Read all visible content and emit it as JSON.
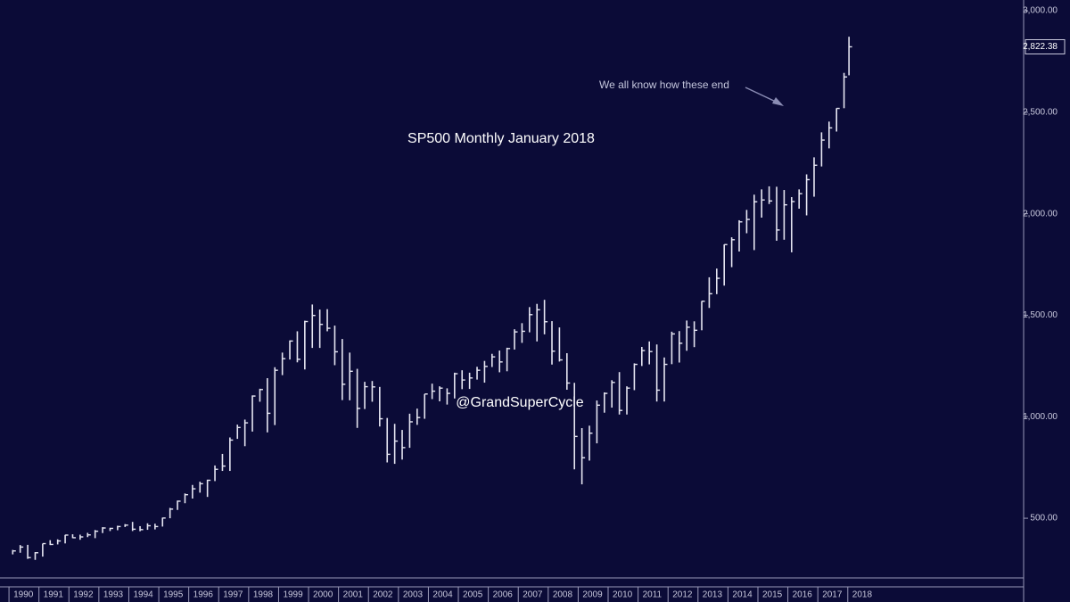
{
  "chart_data": {
    "type": "ohlc",
    "title": "SP500  Monthly  January  2018",
    "annotation": "We all know how these end",
    "watermark": "@GrandSuperCycle",
    "color": "#e6e6f2",
    "background": "#0b0b37",
    "last_price": {
      "value": 2822.38,
      "label": "2,822.38"
    },
    "xlim": [
      1989.7,
      2023.87
    ],
    "ylim": [
      206,
      3053
    ],
    "xticks": [
      1990,
      1991,
      1992,
      1993,
      1994,
      1995,
      1996,
      1997,
      1998,
      1999,
      2000,
      2001,
      2002,
      2003,
      2004,
      2005,
      2006,
      2007,
      2008,
      2009,
      2010,
      2011,
      2012,
      2013,
      2014,
      2015,
      2016,
      2017,
      2018
    ],
    "yticks": [
      {
        "value": 500,
        "label": "500.00"
      },
      {
        "value": 1000,
        "label": "1,000.00"
      },
      {
        "value": 1500,
        "label": "1,500.00"
      },
      {
        "value": 2000,
        "label": "2,000.00"
      },
      {
        "value": 2500,
        "label": "2,500.00"
      },
      {
        "value": 3000,
        "label": "3,000.00"
      }
    ],
    "x": [
      1990.125,
      1990.375,
      1990.625,
      1990.875,
      1991.125,
      1991.375,
      1991.625,
      1991.875,
      1992.125,
      1992.375,
      1992.625,
      1992.875,
      1993.125,
      1993.375,
      1993.625,
      1993.875,
      1994.125,
      1994.375,
      1994.625,
      1994.875,
      1995.125,
      1995.375,
      1995.625,
      1995.875,
      1996.125,
      1996.375,
      1996.625,
      1996.875,
      1997.125,
      1997.375,
      1997.625,
      1997.875,
      1998.125,
      1998.375,
      1998.625,
      1998.875,
      1999.125,
      1999.375,
      1999.625,
      1999.875,
      2000.125,
      2000.375,
      2000.625,
      2000.875,
      2001.125,
      2001.375,
      2001.625,
      2001.875,
      2002.125,
      2002.375,
      2002.625,
      2002.875,
      2003.125,
      2003.375,
      2003.625,
      2003.875,
      2004.125,
      2004.375,
      2004.625,
      2004.875,
      2005.125,
      2005.375,
      2005.625,
      2005.875,
      2006.125,
      2006.375,
      2006.625,
      2006.875,
      2007.125,
      2007.375,
      2007.625,
      2007.875,
      2008.125,
      2008.375,
      2008.625,
      2008.875,
      2009.125,
      2009.375,
      2009.625,
      2009.875,
      2010.125,
      2010.375,
      2010.625,
      2010.875,
      2011.125,
      2011.375,
      2011.625,
      2011.875,
      2012.125,
      2012.375,
      2012.625,
      2012.875,
      2013.125,
      2013.375,
      2013.625,
      2013.875,
      2014.125,
      2014.375,
      2014.625,
      2014.875,
      2015.125,
      2015.375,
      2015.625,
      2015.875,
      2016.125,
      2016.375,
      2016.625,
      2016.875,
      2017.125,
      2017.375,
      2017.625,
      2017.875,
      2018.04
    ],
    "high": [
      344,
      368,
      369,
      333,
      375,
      392,
      396,
      418,
      421,
      419,
      428,
      442,
      456,
      453,
      463,
      471,
      482,
      461,
      475,
      473,
      503,
      551,
      587,
      622,
      664,
      680,
      690,
      760,
      817,
      898,
      961,
      986,
      1105,
      1138,
      1190,
      1244,
      1316,
      1376,
      1421,
      1473,
      1553,
      1528,
      1530,
      1449,
      1383,
      1316,
      1236,
      1172,
      1176,
      1147,
      994,
      965,
      935,
      1015,
      1040,
      1112,
      1163,
      1150,
      1140,
      1217,
      1229,
      1217,
      1246,
      1275,
      1310,
      1326,
      1340,
      1431,
      1461,
      1540,
      1556,
      1576,
      1471,
      1440,
      1313,
      1167,
      944,
      956,
      1080,
      1120,
      1180,
      1220,
      1150,
      1263,
      1344,
      1371,
      1356,
      1292,
      1419,
      1422,
      1474,
      1470,
      1570,
      1687,
      1730,
      1849,
      1884,
      1968,
      2019,
      2094,
      2120,
      2135,
      2133,
      2117,
      2082,
      2120,
      2194,
      2278,
      2401,
      2454,
      2520,
      2694,
      2872
    ],
    "low": [
      322,
      330,
      300,
      295,
      311,
      368,
      371,
      376,
      402,
      394,
      407,
      402,
      427,
      437,
      441,
      457,
      437,
      436,
      443,
      445,
      459,
      500,
      541,
      574,
      597,
      626,
      605,
      683,
      733,
      733,
      891,
      855,
      927,
      1074,
      923,
      959,
      1205,
      1282,
      1268,
      1233,
      1339,
      1339,
      1421,
      1254,
      1082,
      1081,
      945,
      1038,
      1074,
      952,
      775,
      768,
      789,
      847,
      960,
      990,
      1087,
      1076,
      1060,
      1090,
      1136,
      1137,
      1183,
      1168,
      1245,
      1219,
      1224,
      1331,
      1364,
      1416,
      1371,
      1406,
      1257,
      1272,
      1133,
      741,
      667,
      784,
      869,
      1020,
      1045,
      1011,
      1011,
      1131,
      1250,
      1258,
      1075,
      1075,
      1259,
      1267,
      1325,
      1343,
      1426,
      1536,
      1604,
      1646,
      1737,
      1814,
      1904,
      1821,
      1981,
      2048,
      1867,
      1872,
      1810,
      2025,
      1992,
      2084,
      2233,
      2322,
      2405,
      2520,
      2682
    ],
    "close": [
      339,
      358,
      306,
      330,
      375,
      371,
      388,
      417,
      404,
      408,
      418,
      436,
      452,
      450,
      459,
      466,
      446,
      444,
      463,
      459,
      501,
      545,
      584,
      616,
      645,
      670,
      687,
      741,
      757,
      885,
      947,
      970,
      1102,
      1134,
      1017,
      1229,
      1286,
      1373,
      1283,
      1469,
      1499,
      1455,
      1436,
      1320,
      1160,
      1224,
      1041,
      1148,
      1147,
      990,
      815,
      880,
      848,
      975,
      996,
      1112,
      1126,
      1141,
      1115,
      1212,
      1181,
      1191,
      1229,
      1248,
      1295,
      1270,
      1336,
      1418,
      1421,
      1503,
      1527,
      1468,
      1323,
      1280,
      1166,
      903,
      798,
      919,
      1057,
      1115,
      1169,
      1031,
      1141,
      1258,
      1326,
      1321,
      1131,
      1258,
      1408,
      1362,
      1441,
      1426,
      1569,
      1606,
      1682,
      1848,
      1872,
      1960,
      1972,
      2059,
      2068,
      2063,
      1920,
      2044,
      2060,
      2099,
      2168,
      2239,
      2363,
      2423,
      2519,
      2674,
      2822.38
    ]
  }
}
